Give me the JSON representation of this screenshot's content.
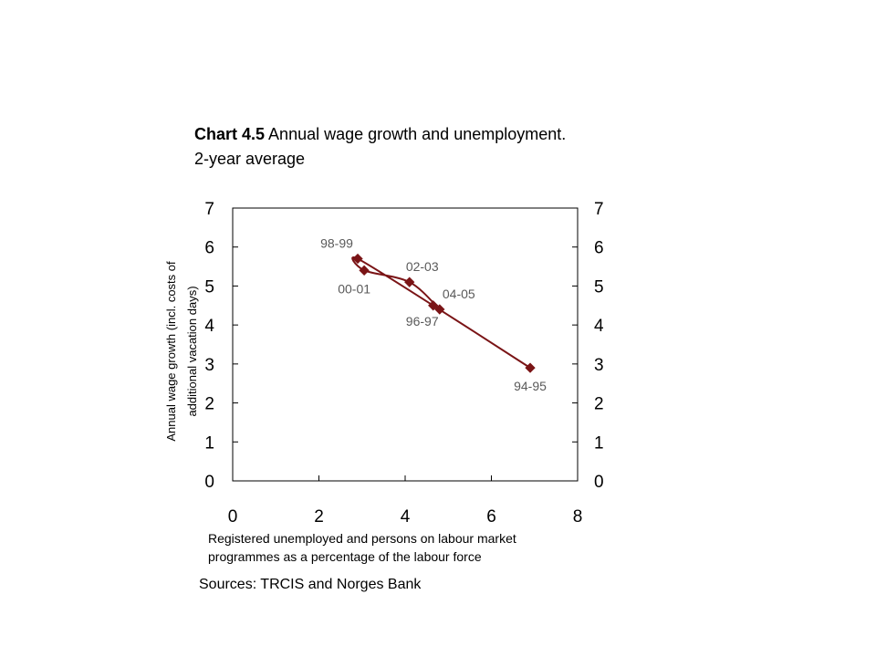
{
  "title": {
    "prefix": "Chart 4.5",
    "text_line1": "Annual wage growth and unemployment.",
    "text_line2": "2-year average"
  },
  "chart_data": {
    "type": "line",
    "xlabel_line1": "Registered unemployed and persons on labour market",
    "xlabel_line2": "programmes as a percentage of the labour force",
    "ylabel_line1": "Annual wage growth (incl. costs of",
    "ylabel_line2": "additional vacation days)",
    "xlim": [
      0,
      8
    ],
    "ylim": [
      0,
      7
    ],
    "x_ticks": [
      0,
      2,
      4,
      6,
      8
    ],
    "y_ticks": [
      0,
      1,
      2,
      3,
      4,
      5,
      6,
      7
    ],
    "y2_ticks": [
      0,
      1,
      2,
      3,
      4,
      5,
      6,
      7
    ],
    "series": [
      {
        "color": "#7a1416",
        "points": [
          {
            "label": "94-95",
            "x": 6.9,
            "y": 2.9
          },
          {
            "label": "96-97",
            "x": 4.65,
            "y": 4.5
          },
          {
            "label": "98-99",
            "x": 2.9,
            "y": 5.7
          },
          {
            "label": "00-01",
            "x": 3.05,
            "y": 5.4
          },
          {
            "label": "02-03",
            "x": 4.1,
            "y": 5.1
          },
          {
            "label": "04-05",
            "x": 4.8,
            "y": 4.4
          }
        ]
      }
    ],
    "grid": false
  },
  "source": "Sources: TRCIS and Norges Bank"
}
